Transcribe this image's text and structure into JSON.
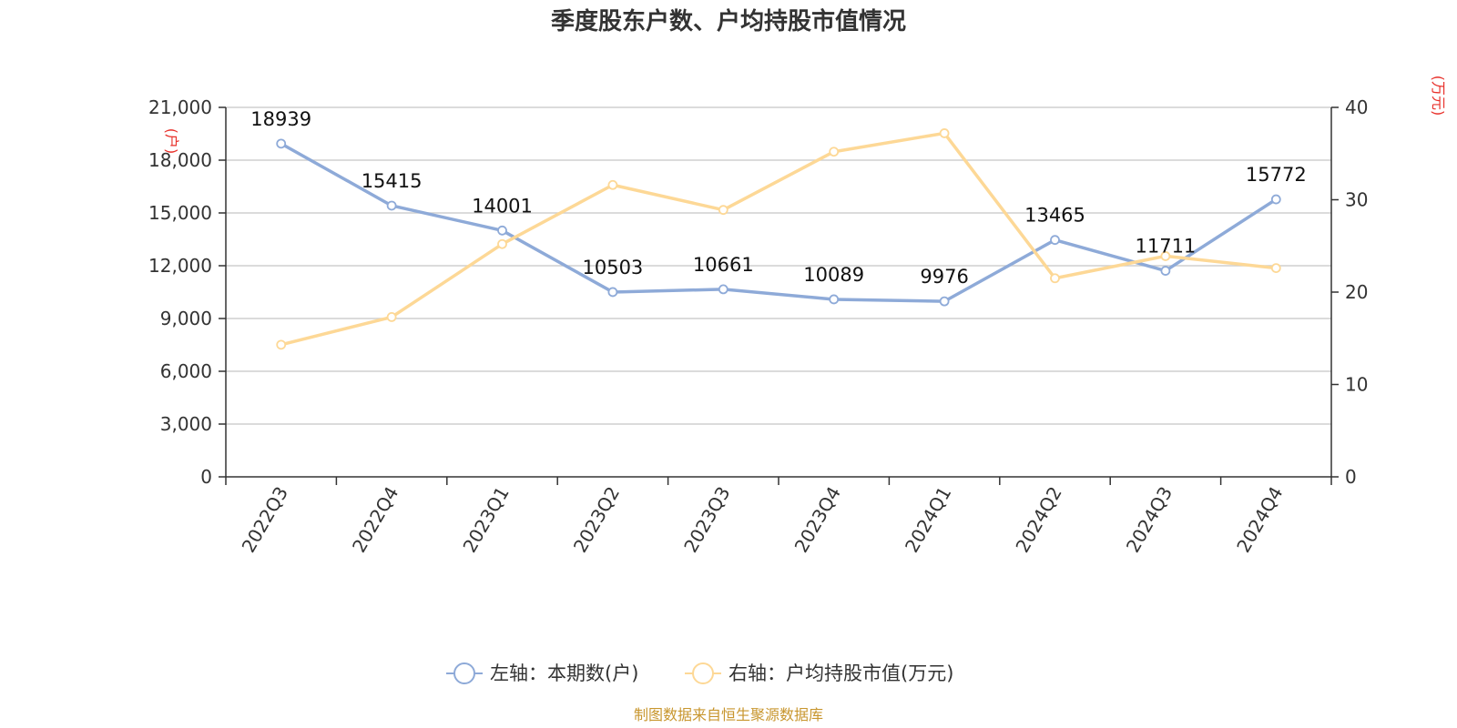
{
  "chart_data": {
    "type": "line",
    "title": "季度股东户数、户均持股市值情况",
    "categories": [
      "2022Q3",
      "2022Q4",
      "2023Q1",
      "2023Q2",
      "2023Q3",
      "2023Q4",
      "2024Q1",
      "2024Q2",
      "2024Q3",
      "2024Q4"
    ],
    "left_axis": {
      "unit": "(户)",
      "ylim": [
        0,
        21000
      ],
      "ticks": [
        0,
        3000,
        6000,
        9000,
        12000,
        15000,
        18000,
        21000
      ],
      "tick_labels": [
        "0",
        "3,000",
        "6,000",
        "9,000",
        "12,000",
        "15,000",
        "18,000",
        "21,000"
      ]
    },
    "right_axis": {
      "unit": "(万元)",
      "ylim": [
        0,
        40
      ],
      "ticks": [
        0,
        10,
        20,
        30,
        40
      ],
      "tick_labels": [
        "0",
        "10",
        "20",
        "30",
        "40"
      ]
    },
    "series": [
      {
        "name": "左轴：本期数(户)",
        "axis": "left",
        "color": "#8eaad8",
        "values": [
          18939,
          15415,
          14001,
          10503,
          10661,
          10089,
          9976,
          13465,
          11711,
          15772
        ],
        "labels": [
          "18939",
          "15415",
          "14001",
          "10503",
          "10661",
          "10089",
          "9976",
          "13465",
          "11711",
          "15772"
        ]
      },
      {
        "name": "右轴：户均持股市值(万元)",
        "axis": "right",
        "color": "#fdd896",
        "values": [
          14.3,
          17.3,
          25.2,
          31.6,
          28.9,
          35.2,
          37.2,
          21.5,
          23.9,
          22.6
        ]
      }
    ],
    "grid": true,
    "legend_position": "bottom-center"
  },
  "footer": {
    "source": "制图数据来自恒生聚源数据库"
  }
}
